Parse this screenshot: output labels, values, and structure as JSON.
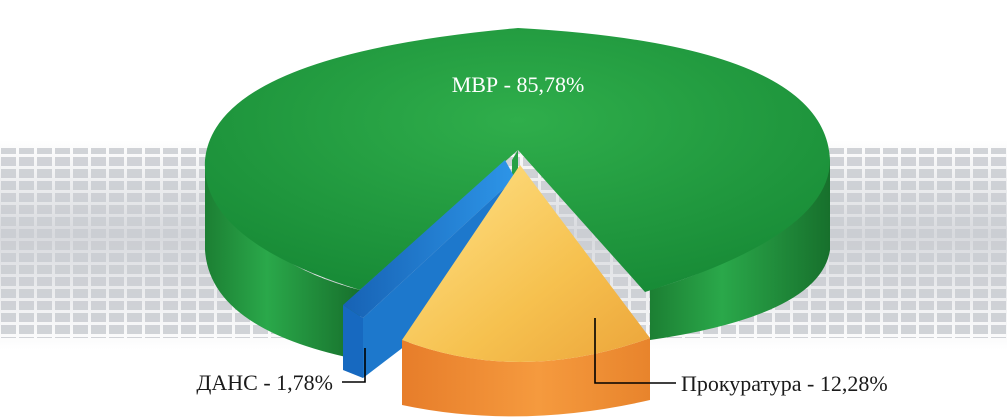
{
  "chart_data": {
    "type": "pie",
    "title": "",
    "categories": [
      "МВР",
      "Прокуратура",
      "ДАНС"
    ],
    "values": [
      85.78,
      12.28,
      1.78
    ],
    "labels": [
      "МВР - 85,78%",
      "Прокуратура - 12,28%",
      "ДАНС - 1,78%"
    ],
    "colors": [
      "#1e9a3c",
      "#f2b23e",
      "#1f7fd0"
    ],
    "style": "3d-exploded"
  }
}
